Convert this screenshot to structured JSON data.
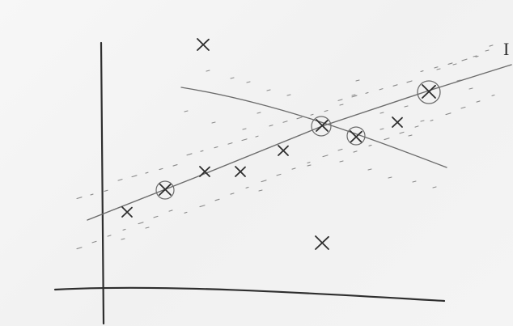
{
  "sketch": {
    "description_label": "",
    "end_mark": "I",
    "ink_color": "#2e2e2e",
    "paper_color": "#f4f4f4"
  }
}
